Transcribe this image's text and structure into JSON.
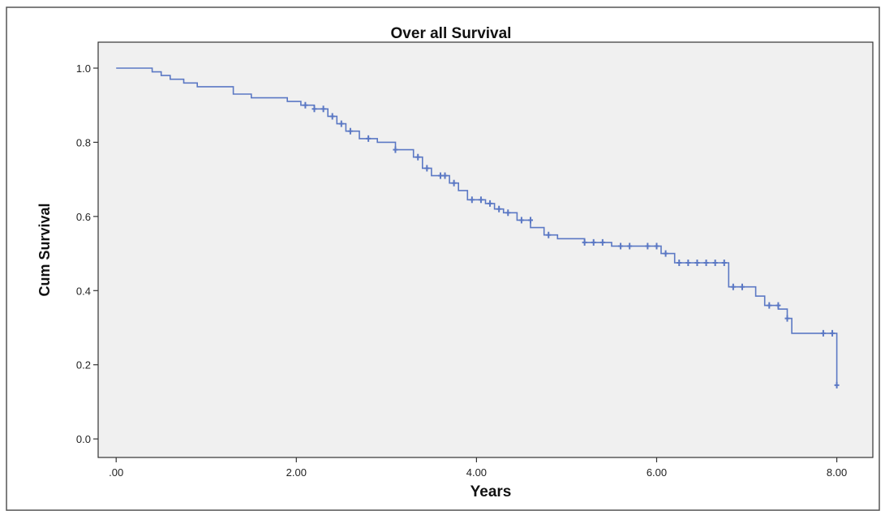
{
  "chart_data": {
    "type": "line",
    "title": "Over all Survival",
    "xlabel": "Years",
    "ylabel": "Cum Survival",
    "xlim": [
      -0.2,
      8.4
    ],
    "ylim": [
      -0.05,
      1.07
    ],
    "x_ticks": [
      {
        "value": 0,
        "label": ".00"
      },
      {
        "value": 2,
        "label": "2.00"
      },
      {
        "value": 4,
        "label": "4.00"
      },
      {
        "value": 6,
        "label": "6.00"
      },
      {
        "value": 8,
        "label": "8.00"
      }
    ],
    "y_ticks": [
      {
        "value": 0.0,
        "label": "0.0"
      },
      {
        "value": 0.2,
        "label": "0.2"
      },
      {
        "value": 0.4,
        "label": "0.4"
      },
      {
        "value": 0.6,
        "label": "0.6"
      },
      {
        "value": 0.8,
        "label": "0.8"
      },
      {
        "value": 1.0,
        "label": "1.0"
      }
    ],
    "grid": false,
    "series": [
      {
        "color": "#5b78c4",
        "steps": [
          [
            0,
            1.0
          ],
          [
            0.4,
            0.99
          ],
          [
            0.5,
            0.98
          ],
          [
            0.6,
            0.97
          ],
          [
            0.75,
            0.96
          ],
          [
            0.9,
            0.95
          ],
          [
            1.3,
            0.93
          ],
          [
            1.5,
            0.92
          ],
          [
            1.9,
            0.91
          ],
          [
            2.05,
            0.9
          ],
          [
            2.2,
            0.89
          ],
          [
            2.35,
            0.87
          ],
          [
            2.45,
            0.85
          ],
          [
            2.55,
            0.83
          ],
          [
            2.7,
            0.81
          ],
          [
            2.9,
            0.8
          ],
          [
            3.1,
            0.78
          ],
          [
            3.3,
            0.76
          ],
          [
            3.4,
            0.73
          ],
          [
            3.5,
            0.71
          ],
          [
            3.7,
            0.69
          ],
          [
            3.8,
            0.67
          ],
          [
            3.9,
            0.645
          ],
          [
            4.1,
            0.635
          ],
          [
            4.2,
            0.62
          ],
          [
            4.3,
            0.61
          ],
          [
            4.45,
            0.59
          ],
          [
            4.6,
            0.57
          ],
          [
            4.75,
            0.55
          ],
          [
            4.9,
            0.54
          ],
          [
            5.2,
            0.53
          ],
          [
            5.5,
            0.52
          ],
          [
            6.05,
            0.5
          ],
          [
            6.2,
            0.475
          ],
          [
            6.8,
            0.41
          ],
          [
            7.1,
            0.385
          ],
          [
            7.2,
            0.36
          ],
          [
            7.35,
            0.35
          ],
          [
            7.45,
            0.325
          ],
          [
            7.5,
            0.285
          ],
          [
            8.0,
            0.145
          ]
        ],
        "censored": [
          [
            2.1,
            0.9
          ],
          [
            2.2,
            0.89
          ],
          [
            2.3,
            0.89
          ],
          [
            2.4,
            0.87
          ],
          [
            2.5,
            0.85
          ],
          [
            2.6,
            0.83
          ],
          [
            2.8,
            0.81
          ],
          [
            3.1,
            0.78
          ],
          [
            3.35,
            0.76
          ],
          [
            3.45,
            0.73
          ],
          [
            3.6,
            0.71
          ],
          [
            3.65,
            0.71
          ],
          [
            3.75,
            0.69
          ],
          [
            3.95,
            0.645
          ],
          [
            4.05,
            0.645
          ],
          [
            4.15,
            0.635
          ],
          [
            4.25,
            0.62
          ],
          [
            4.35,
            0.61
          ],
          [
            4.5,
            0.59
          ],
          [
            4.6,
            0.59
          ],
          [
            4.8,
            0.55
          ],
          [
            5.2,
            0.53
          ],
          [
            5.3,
            0.53
          ],
          [
            5.4,
            0.53
          ],
          [
            5.6,
            0.52
          ],
          [
            5.7,
            0.52
          ],
          [
            5.9,
            0.52
          ],
          [
            6.0,
            0.52
          ],
          [
            6.1,
            0.5
          ],
          [
            6.25,
            0.475
          ],
          [
            6.35,
            0.475
          ],
          [
            6.45,
            0.475
          ],
          [
            6.55,
            0.475
          ],
          [
            6.65,
            0.475
          ],
          [
            6.75,
            0.475
          ],
          [
            6.85,
            0.41
          ],
          [
            6.95,
            0.41
          ],
          [
            7.25,
            0.36
          ],
          [
            7.35,
            0.36
          ],
          [
            7.45,
            0.325
          ],
          [
            7.85,
            0.285
          ],
          [
            7.95,
            0.285
          ],
          [
            8.0,
            0.145
          ]
        ]
      }
    ]
  }
}
